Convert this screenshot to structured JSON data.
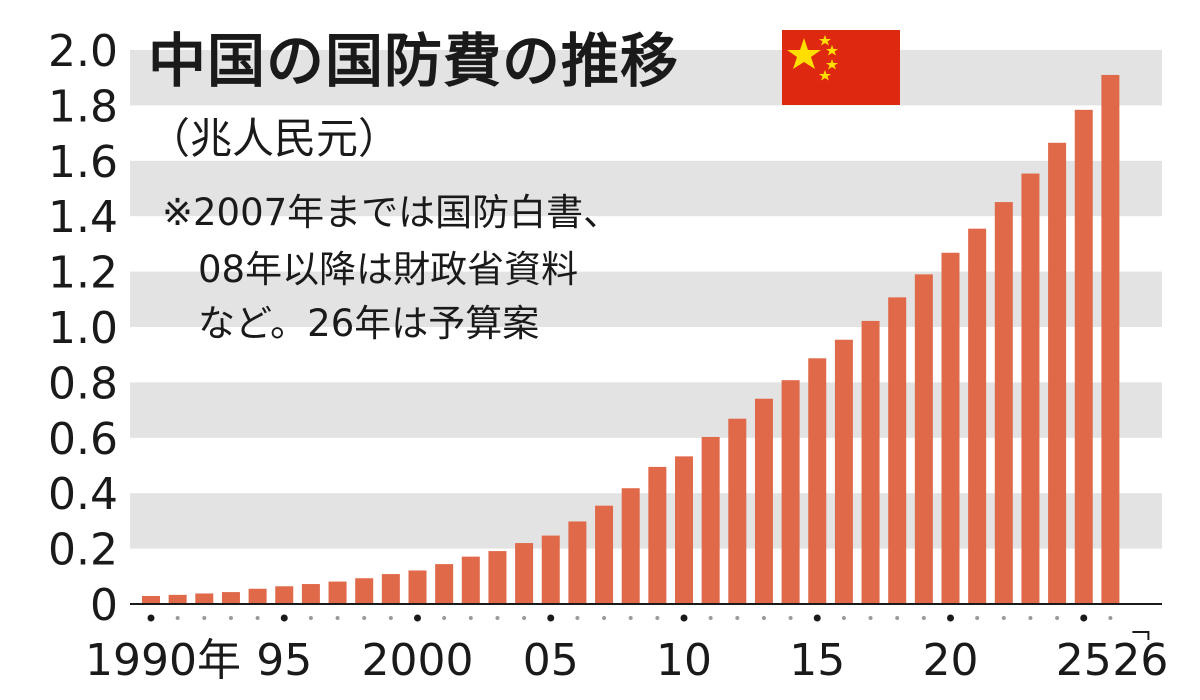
{
  "title": "中国の国防費の推移",
  "unit": "（兆人民元）",
  "notes": [
    "※2007年までは国防白書、",
    "08年以降は財政省資料",
    "など。26年は予算案"
  ],
  "flag_icon": "china-flag-icon",
  "colors": {
    "bar": "#e0694a",
    "band": "#e3e3e3",
    "text": "#1a1a1a",
    "flag_red": "#de2910",
    "flag_star": "#ffde00"
  },
  "chart_data": {
    "type": "bar",
    "title": "中国の国防費の推移",
    "ylabel": "兆人民元",
    "xlabel": "",
    "ylim": [
      0,
      2.0
    ],
    "y_ticks": [
      "0",
      "0.2",
      "0.4",
      "0.6",
      "0.8",
      "1.0",
      "1.2",
      "1.4",
      "1.6",
      "1.8",
      "2.0"
    ],
    "x_tick_labels": [
      {
        "year": 1990,
        "label": "1990年"
      },
      {
        "year": 1995,
        "label": "95"
      },
      {
        "year": 2000,
        "label": "2000"
      },
      {
        "year": 2005,
        "label": "05"
      },
      {
        "year": 2010,
        "label": "10"
      },
      {
        "year": 2015,
        "label": "15"
      },
      {
        "year": 2020,
        "label": "20"
      },
      {
        "year": 2025,
        "label": "25"
      },
      {
        "year": 2026,
        "label": "26"
      }
    ],
    "categories": [
      1990,
      1991,
      1992,
      1993,
      1994,
      1995,
      1996,
      1997,
      1998,
      1999,
      2000,
      2001,
      2002,
      2003,
      2004,
      2005,
      2006,
      2007,
      2008,
      2009,
      2010,
      2011,
      2012,
      2013,
      2014,
      2015,
      2016,
      2017,
      2018,
      2019,
      2020,
      2021,
      2022,
      2023,
      2024,
      2025,
      2026
    ],
    "values": [
      0.029,
      0.033,
      0.038,
      0.043,
      0.055,
      0.064,
      0.072,
      0.081,
      0.093,
      0.108,
      0.121,
      0.144,
      0.171,
      0.191,
      0.22,
      0.247,
      0.298,
      0.355,
      0.418,
      0.495,
      0.533,
      0.603,
      0.669,
      0.741,
      0.808,
      0.887,
      0.954,
      1.022,
      1.107,
      1.19,
      1.268,
      1.355,
      1.451,
      1.554,
      1.665,
      1.784,
      1.91
    ]
  }
}
